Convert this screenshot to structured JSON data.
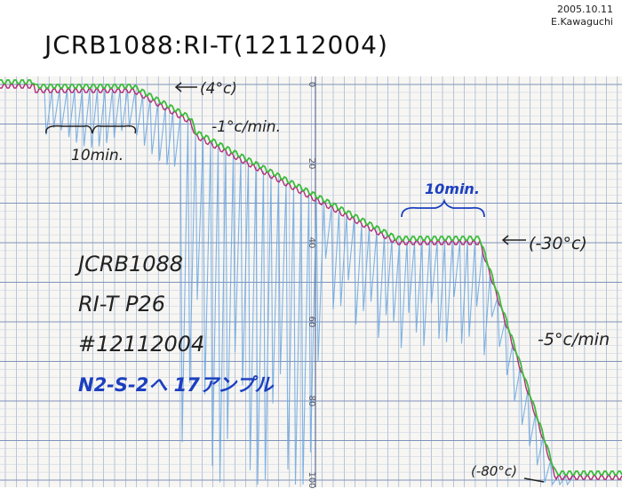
{
  "header": {
    "date": "2005.10.11",
    "author": "E.Kawaguchi",
    "title": "JCRB1088:RI-T(12112004)"
  },
  "annotations": {
    "start_temp": "(4°c)",
    "rate_1": "-1°c/min.",
    "interval_1": "10min.",
    "interval_2": "10min.",
    "hold_temp": "(-30°c)",
    "rate_2": "-5°c/min",
    "end_temp": "(-80°c)"
  },
  "label": {
    "lines": [
      "JCRB1088",
      "RI-T P26",
      "#12112004",
      "N2-S-2へ 17アンプル"
    ]
  },
  "scale": {
    "labels": [
      0,
      20,
      40,
      60,
      80,
      100
    ]
  }
}
